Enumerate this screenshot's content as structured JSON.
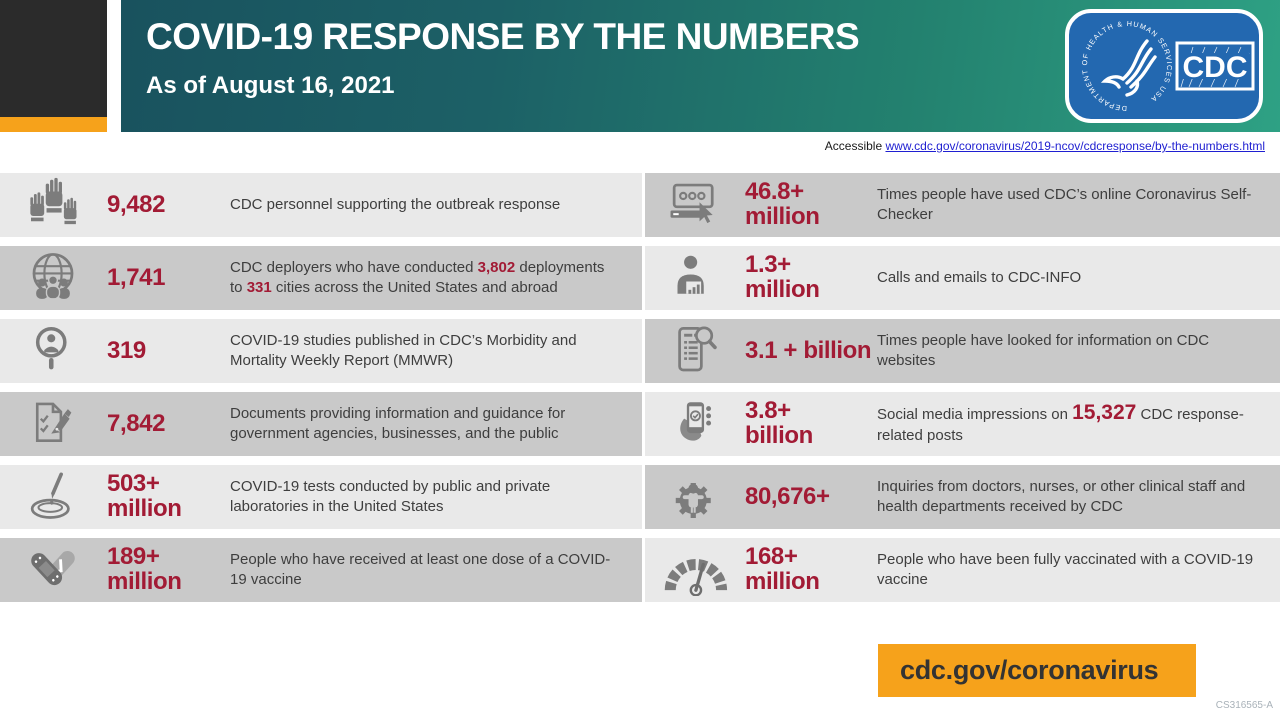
{
  "header": {
    "title": "COVID-19 RESPONSE BY THE NUMBERS",
    "subtitle": "As of August 16, 2021",
    "logo": {
      "cdc_text": "CDC",
      "hhs_ring_text": "DEPARTMENT OF HEALTH & HUMAN SERVICES USA"
    }
  },
  "accessible": {
    "label": "Accessible",
    "url": "www.cdc.gov/coronavirus/2019-ncov/cdcresponse/by-the-numbers.html"
  },
  "stats": {
    "left": [
      {
        "icon": "raised-hands-icon",
        "value": "9,482",
        "value2": "",
        "desc": [
          {
            "t": "CDC personnel supporting the outbreak response"
          }
        ]
      },
      {
        "icon": "globe-people-icon",
        "value": "1,741",
        "value2": "",
        "desc": [
          {
            "t": "CDC deployers who have conducted "
          },
          {
            "t": "3,802",
            "red": true
          },
          {
            "t": " deployments to "
          },
          {
            "t": "331",
            "red": true
          },
          {
            "t": " cities across the United States and abroad"
          }
        ]
      },
      {
        "icon": "magnifier-person-icon",
        "value": "319",
        "value2": "",
        "desc": [
          {
            "t": "COVID-19 studies published in CDC’s Morbidity and Mortality Weekly Report (MMWR)"
          }
        ]
      },
      {
        "icon": "document-pen-icon",
        "value": "7,842",
        "value2": "",
        "desc": [
          {
            "t": "Documents providing information and guidance for government agencies, businesses, and the public"
          }
        ]
      },
      {
        "icon": "petri-dish-icon",
        "value": "503+",
        "value2": "million",
        "desc": [
          {
            "t": "COVID-19 tests conducted by public and private laboratories in the United States"
          }
        ]
      },
      {
        "icon": "bandage-check-icon",
        "value": "189+",
        "value2": "million",
        "desc": [
          {
            "t": "People who have received at least one dose of a COVID-19 vaccine"
          }
        ]
      }
    ],
    "right": [
      {
        "icon": "console-cursor-icon",
        "value": "46.8+",
        "value2": "million",
        "desc": [
          {
            "t": "Times people have used CDC’s online Coronavirus Self-Checker"
          }
        ]
      },
      {
        "icon": "person-chart-icon",
        "value": "1.3+",
        "value2": "million",
        "desc": [
          {
            "t": "Calls and emails to CDC-INFO"
          }
        ]
      },
      {
        "icon": "document-magnifier-icon",
        "value": "3.1 + billion",
        "value2": "",
        "desc": [
          {
            "t": "Times people have looked for information on CDC websites"
          }
        ]
      },
      {
        "icon": "phone-check-icon",
        "value": "3.8+",
        "value2": "billion",
        "desc": [
          {
            "t": "Social media impressions on "
          },
          {
            "t": "15,327",
            "red": true,
            "big": true
          },
          {
            "t": " CDC response-related posts"
          }
        ]
      },
      {
        "icon": "person-gear-icon",
        "value": "80,676+",
        "value2": "",
        "desc": [
          {
            "t": "Inquiries from doctors, nurses, or other clinical staff and health departments received by CDC"
          }
        ]
      },
      {
        "icon": "gauge-icon",
        "value": "168+",
        "value2": "million",
        "desc": [
          {
            "t": "People who have been fully vaccinated with a COVID-19 vaccine"
          }
        ]
      }
    ]
  },
  "footer": {
    "url_box": "cdc.gov/coronavirus",
    "doc_code": "CS316565-A"
  },
  "colors": {
    "accent_red": "#A21B35",
    "orange": "#F6A21B",
    "teal_dark": "#19525E",
    "teal_green": "#2EA184",
    "row_light": "#E9E9E9",
    "row_dark": "#C9C9C9",
    "logo_blue": "#2368B0",
    "link_blue": "#1F1FD1",
    "icon_gray": "#7C7C7C",
    "corner_black": "#2B2B2B"
  }
}
